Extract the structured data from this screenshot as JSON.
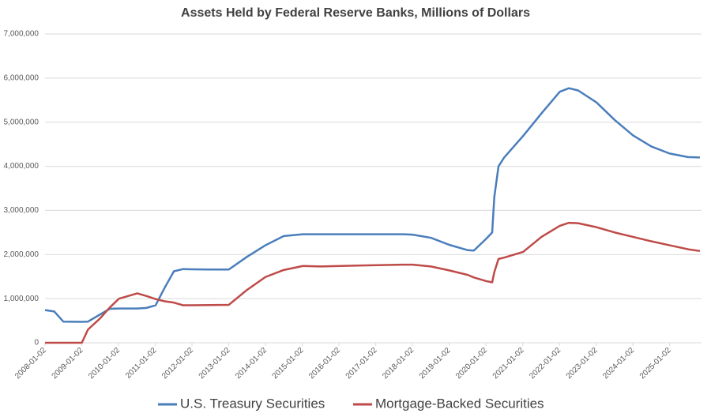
{
  "chart_data": {
    "type": "line",
    "title": "Assets Held by Federal Reserve Banks, Millions of Dollars",
    "x": [
      "2008-01-02",
      "2008-04-02",
      "2008-07-02",
      "2008-10-01",
      "2009-01-02",
      "2009-03-04",
      "2009-07-01",
      "2009-10-07",
      "2010-01-06",
      "2010-07-07",
      "2010-10-06",
      "2011-01-05",
      "2011-04-06",
      "2011-07-06",
      "2011-10-05",
      "2012-01-04",
      "2012-07-04",
      "2013-01-02",
      "2013-07-03",
      "2014-01-01",
      "2014-07-02",
      "2015-01-07",
      "2015-07-01",
      "2016-07-06",
      "2017-10-04",
      "2018-01-03",
      "2018-07-04",
      "2019-01-02",
      "2019-07-03",
      "2019-09-04",
      "2020-01-01",
      "2020-03-04",
      "2020-03-25",
      "2020-05-06",
      "2020-07-01",
      "2021-01-06",
      "2021-07-07",
      "2022-01-05",
      "2022-04-06",
      "2022-07-06",
      "2023-01-04",
      "2023-07-05",
      "2024-01-03",
      "2024-07-03",
      "2025-01-01",
      "2025-07-02",
      "2025-10-29"
    ],
    "series": [
      {
        "name": "U.S. Treasury Securities",
        "color": "#4a7ebb",
        "values": [
          740000,
          710000,
          480000,
          476000,
          475000,
          480000,
          640000,
          770000,
          776000,
          777000,
          790000,
          850000,
          1250000,
          1620000,
          1670000,
          1665000,
          1660000,
          1660000,
          1950000,
          2210000,
          2420000,
          2460000,
          2460000,
          2460000,
          2460000,
          2450000,
          2380000,
          2220000,
          2100000,
          2090000,
          2350000,
          2500000,
          3300000,
          4000000,
          4200000,
          4690000,
          5200000,
          5690000,
          5770000,
          5720000,
          5450000,
          5050000,
          4700000,
          4450000,
          4290000,
          4210000,
          4200000
        ]
      },
      {
        "name": "Mortgage-Backed Securities",
        "color": "#be4b48",
        "values": [
          0,
          0,
          0,
          0,
          0,
          300000,
          550000,
          800000,
          1000000,
          1120000,
          1060000,
          990000,
          940000,
          910000,
          850000,
          850000,
          855000,
          860000,
          1200000,
          1490000,
          1650000,
          1740000,
          1730000,
          1750000,
          1770000,
          1770000,
          1730000,
          1640000,
          1540000,
          1480000,
          1400000,
          1370000,
          1600000,
          1900000,
          1930000,
          2060000,
          2400000,
          2650000,
          2720000,
          2710000,
          2620000,
          2500000,
          2400000,
          2300000,
          2210000,
          2120000,
          2080000
        ]
      }
    ],
    "xlim": [
      "2008-01-02",
      "2025-11-14"
    ],
    "xticks": [
      "2008-01-02",
      "2009-01-02",
      "2010-01-02",
      "2011-01-02",
      "2012-01-02",
      "2013-01-02",
      "2014-01-02",
      "2015-01-02",
      "2016-01-02",
      "2017-01-02",
      "2018-01-02",
      "2019-01-02",
      "2020-01-02",
      "2021-01-02",
      "2022-01-02",
      "2023-01-02",
      "2024-01-02",
      "2025-01-02"
    ],
    "ylim": [
      0,
      7000000
    ],
    "yticks": [
      0,
      {
        "value": 1000000,
        "label": "1,000,000"
      },
      {
        "value": 2000000,
        "label": "2,000,000"
      },
      {
        "value": 3000000,
        "label": "3,000,000"
      },
      {
        "value": 4000000,
        "label": "4,000,000"
      },
      {
        "value": 5000000,
        "label": "5,000,000"
      },
      {
        "value": 6000000,
        "label": "6,000,000"
      },
      {
        "value": 7000000,
        "label": "7,000,000"
      }
    ],
    "grid": true,
    "legend": "bottom"
  }
}
